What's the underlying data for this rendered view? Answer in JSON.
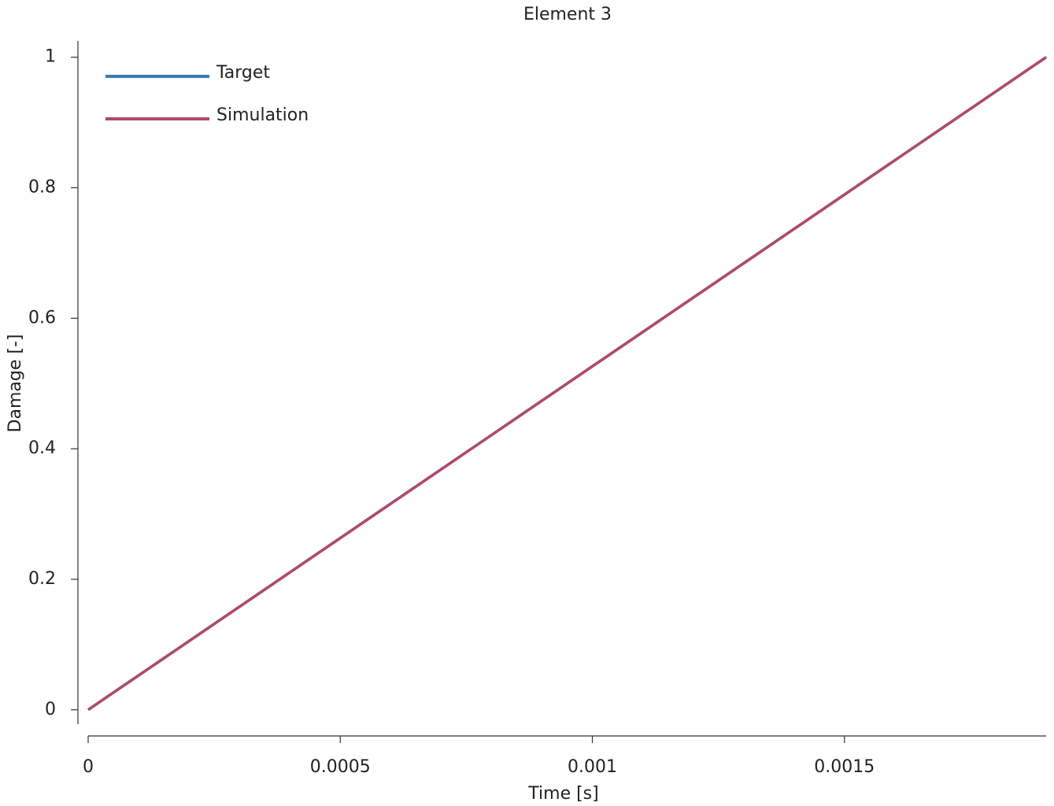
{
  "chart_data": {
    "type": "line",
    "title": "Element 3",
    "x_label": "Time [s]",
    "y_label": "Damage [-]",
    "x": [
      0,
      0.0019
    ],
    "series": [
      {
        "name": "Target",
        "color": "#3b7ab5",
        "values": [
          0,
          1
        ]
      },
      {
        "name": "Simulation",
        "color": "#b04a6b",
        "values": [
          0,
          1
        ]
      }
    ],
    "xlim": [
      0,
      0.0019
    ],
    "xticks": [
      0,
      0.0005,
      0.001,
      0.0015
    ],
    "ylim": [
      -0.022,
      1.025
    ],
    "yticks": [
      0,
      0.2,
      0.4,
      0.6,
      0.8,
      1
    ],
    "grid": false,
    "legend": "upper left"
  }
}
